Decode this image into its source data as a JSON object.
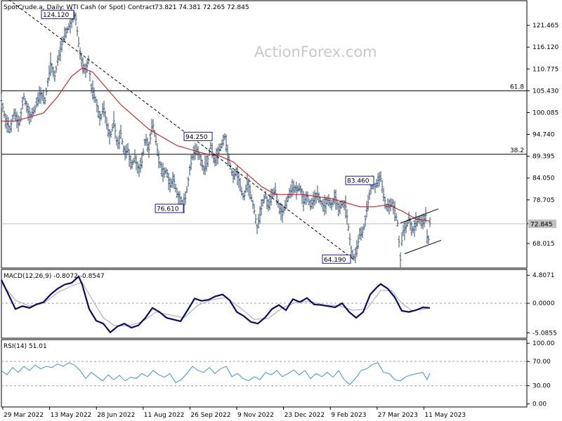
{
  "header": {
    "symbol": "SpotCrude.a, Daily:  WTI Cash (or Spot) Contract",
    "ohlc": "73.821 74.381 72.265 72.845"
  },
  "watermark": "ActionForex.com",
  "colors": {
    "price": "#2f4f6f",
    "ma": "#e00000",
    "macd": "#0a0a6e",
    "signal": "#a0a0d0",
    "rsi": "#3a96d8",
    "level": "#000000"
  },
  "chart_data": [
    {
      "type": "line",
      "title": "",
      "series": [],
      "ylim": [
        62.0,
        127.5
      ],
      "yticks": [
        "121.465",
        "116.120",
        "110.775",
        "105.430",
        "100.085",
        "94.740",
        "89.395",
        "84.050",
        "78.705",
        "72.845",
        "68.015"
      ],
      "current_price": "72.845",
      "levels": [
        {
          "label": "61.8",
          "value": 105.43
        },
        {
          "label": "38.2",
          "value": 89.88
        }
      ],
      "xticks": [
        "29 Mar 2022",
        "13 May 2022",
        "28 Jun 2022",
        "11 Aug 2022",
        "26 Sep 2022",
        "9 Nov 2022",
        "23 Dec 2022",
        "9 Feb 2023",
        "27 Mar 2023",
        "11 May 2023"
      ],
      "price_points": [
        [
          0,
          103
        ],
        [
          6,
          98
        ],
        [
          12,
          96
        ],
        [
          18,
          100
        ],
        [
          25,
          97
        ],
        [
          32,
          104
        ],
        [
          40,
          99
        ],
        [
          48,
          101
        ],
        [
          55,
          105
        ],
        [
          62,
          103
        ],
        [
          70,
          112
        ],
        [
          76,
          109
        ],
        [
          83,
          115
        ],
        [
          88,
          118
        ],
        [
          93,
          120
        ],
        [
          98,
          122
        ],
        [
          103,
          124.12
        ],
        [
          106,
          123
        ],
        [
          110,
          117
        ],
        [
          115,
          112
        ],
        [
          120,
          110
        ],
        [
          124,
          113
        ],
        [
          128,
          106
        ],
        [
          133,
          104
        ],
        [
          137,
          101
        ],
        [
          141,
          98
        ],
        [
          145,
          102
        ],
        [
          150,
          97
        ],
        [
          155,
          94
        ],
        [
          160,
          98
        ],
        [
          165,
          92
        ],
        [
          170,
          95
        ],
        [
          175,
          90
        ],
        [
          180,
          91
        ],
        [
          185,
          87
        ],
        [
          190,
          89
        ],
        [
          195,
          86
        ],
        [
          200,
          88
        ],
        [
          205,
          94
        ],
        [
          210,
          91
        ],
        [
          215,
          98
        ],
        [
          220,
          93
        ],
        [
          225,
          88
        ],
        [
          230,
          85
        ],
        [
          235,
          86
        ],
        [
          240,
          82
        ],
        [
          245,
          84
        ],
        [
          250,
          80
        ],
        [
          255,
          79
        ],
        [
          259,
          76.61
        ],
        [
          263,
          80
        ],
        [
          268,
          86
        ],
        [
          273,
          90
        ],
        [
          278,
          91
        ],
        [
          283,
          89
        ],
        [
          288,
          86
        ],
        [
          293,
          88
        ],
        [
          298,
          92
        ],
        [
          303,
          88
        ],
        [
          308,
          90
        ],
        [
          313,
          92
        ],
        [
          318,
          94.25
        ],
        [
          322,
          90
        ],
        [
          326,
          87
        ],
        [
          330,
          84
        ],
        [
          335,
          86
        ],
        [
          340,
          82
        ],
        [
          345,
          79
        ],
        [
          350,
          83
        ],
        [
          355,
          80
        ],
        [
          360,
          76
        ],
        [
          364,
          72
        ],
        [
          368,
          75
        ],
        [
          372,
          78
        ],
        [
          376,
          80
        ],
        [
          380,
          77
        ],
        [
          385,
          80
        ],
        [
          390,
          81
        ],
        [
          395,
          77
        ],
        [
          400,
          75
        ],
        [
          405,
          78
        ],
        [
          410,
          80
        ],
        [
          415,
          82
        ],
        [
          420,
          81
        ],
        [
          425,
          82
        ],
        [
          430,
          78
        ],
        [
          435,
          80
        ],
        [
          440,
          77
        ],
        [
          445,
          79
        ],
        [
          450,
          80
        ],
        [
          455,
          78
        ],
        [
          460,
          77
        ],
        [
          465,
          79
        ],
        [
          470,
          77
        ],
        [
          475,
          80
        ],
        [
          480,
          76
        ],
        [
          485,
          78
        ],
        [
          490,
          77
        ],
        [
          494,
          72
        ],
        [
          498,
          66
        ],
        [
          501,
          64.19
        ],
        [
          505,
          66
        ],
        [
          510,
          70
        ],
        [
          515,
          71
        ],
        [
          520,
          76
        ],
        [
          524,
          80
        ],
        [
          528,
          83
        ],
        [
          532,
          82
        ],
        [
          536,
          83.46
        ],
        [
          540,
          84
        ],
        [
          544,
          80
        ],
        [
          548,
          77
        ],
        [
          552,
          77
        ],
        [
          556,
          78
        ],
        [
          560,
          76
        ],
        [
          564,
          73
        ],
        [
          568,
          64
        ],
        [
          571,
          71
        ],
        [
          576,
          72
        ],
        [
          580,
          74
        ],
        [
          585,
          71
        ],
        [
          590,
          73
        ],
        [
          595,
          74
        ],
        [
          600,
          73
        ],
        [
          604,
          75
        ],
        [
          607,
          67
        ],
        [
          610,
          72.845
        ]
      ],
      "ma_points": [
        [
          0,
          98
        ],
        [
          20,
          98
        ],
        [
          40,
          99
        ],
        [
          60,
          100
        ],
        [
          80,
          104
        ],
        [
          100,
          109
        ],
        [
          115,
          111
        ],
        [
          130,
          110
        ],
        [
          150,
          106
        ],
        [
          170,
          102
        ],
        [
          190,
          99
        ],
        [
          210,
          96
        ],
        [
          230,
          94
        ],
        [
          250,
          92
        ],
        [
          270,
          91
        ],
        [
          290,
          90
        ],
        [
          310,
          89.5
        ],
        [
          330,
          88
        ],
        [
          350,
          85
        ],
        [
          370,
          82
        ],
        [
          390,
          80
        ],
        [
          410,
          80
        ],
        [
          430,
          80
        ],
        [
          450,
          79.5
        ],
        [
          470,
          79
        ],
        [
          490,
          78
        ],
        [
          510,
          77
        ],
        [
          530,
          77
        ],
        [
          550,
          77.5
        ],
        [
          570,
          76
        ],
        [
          590,
          74
        ],
        [
          610,
          73.5
        ]
      ],
      "annotations": [
        {
          "label": "124.120",
          "x": 103,
          "y": 124.12,
          "pos": "left"
        },
        {
          "label": "94.250",
          "x": 300,
          "y": 94.25,
          "pos": "left"
        },
        {
          "label": "76.610",
          "x": 259,
          "y": 76.61,
          "pos": "left"
        },
        {
          "label": "83.460",
          "x": 530,
          "y": 83.46,
          "pos": "left"
        },
        {
          "label": "64.190",
          "x": 497,
          "y": 64.19,
          "pos": "left"
        }
      ],
      "trendlines": [
        {
          "x1": 5,
          "y1": 128.5,
          "x2": 501,
          "y2": 64.19
        },
        {
          "x1": 568,
          "y1": 73.0,
          "x2": 622,
          "y2": 76.5
        },
        {
          "x1": 574,
          "y1": 65.5,
          "x2": 626,
          "y2": 68.8
        }
      ]
    },
    {
      "type": "line",
      "title": "MACD(12,26,9) -0.8072 -0.8547",
      "ylim": [
        -6.0,
        5.8
      ],
      "yticks": [
        "4.8071",
        "0.0000",
        "-5.0855"
      ],
      "series": [],
      "macd_points": [
        [
          0,
          4
        ],
        [
          10,
          1.5
        ],
        [
          20,
          -1
        ],
        [
          30,
          -0.5
        ],
        [
          40,
          -0.8
        ],
        [
          50,
          -0.2
        ],
        [
          60,
          0.2
        ],
        [
          70,
          1.5
        ],
        [
          80,
          2.5
        ],
        [
          90,
          3.2
        ],
        [
          100,
          3.5
        ],
        [
          110,
          4.6
        ],
        [
          115,
          3.2
        ],
        [
          125,
          -1
        ],
        [
          135,
          -3
        ],
        [
          145,
          -3.5
        ],
        [
          155,
          -5
        ],
        [
          165,
          -4
        ],
        [
          175,
          -3.5
        ],
        [
          185,
          -4.2
        ],
        [
          195,
          -3.8
        ],
        [
          205,
          -2.5
        ],
        [
          215,
          -0.8
        ],
        [
          225,
          -1.5
        ],
        [
          235,
          -2.5
        ],
        [
          245,
          -2.8
        ],
        [
          255,
          -3.1
        ],
        [
          265,
          -1.2
        ],
        [
          275,
          0.8
        ],
        [
          285,
          0.4
        ],
        [
          295,
          0.6
        ],
        [
          305,
          1.2
        ],
        [
          315,
          1.5
        ],
        [
          325,
          0.5
        ],
        [
          335,
          -1.5
        ],
        [
          345,
          -2.2
        ],
        [
          355,
          -3.2
        ],
        [
          365,
          -3.5
        ],
        [
          375,
          -2.5
        ],
        [
          385,
          -1
        ],
        [
          395,
          -0.3
        ],
        [
          405,
          -1.2
        ],
        [
          415,
          0.7
        ],
        [
          425,
          0.2
        ],
        [
          435,
          0.9
        ],
        [
          445,
          -0.2
        ],
        [
          455,
          -0.3
        ],
        [
          465,
          -0.5
        ],
        [
          475,
          -0.7
        ],
        [
          485,
          0
        ],
        [
          495,
          -1.5
        ],
        [
          505,
          -2.5
        ],
        [
          515,
          -1.5
        ],
        [
          525,
          1.5
        ],
        [
          535,
          2.8
        ],
        [
          540,
          3.3
        ],
        [
          550,
          2.5
        ],
        [
          560,
          1
        ],
        [
          570,
          -1.3
        ],
        [
          580,
          -1.5
        ],
        [
          590,
          -1.2
        ],
        [
          600,
          -0.7
        ],
        [
          610,
          -0.8
        ]
      ],
      "signal_points": [
        [
          0,
          3.5
        ],
        [
          20,
          0.5
        ],
        [
          40,
          -0.5
        ],
        [
          60,
          0
        ],
        [
          80,
          1.8
        ],
        [
          100,
          3
        ],
        [
          115,
          3.6
        ],
        [
          130,
          0.5
        ],
        [
          145,
          -2.5
        ],
        [
          160,
          -3.8
        ],
        [
          180,
          -3.9
        ],
        [
          200,
          -3.2
        ],
        [
          220,
          -1.5
        ],
        [
          240,
          -2
        ],
        [
          260,
          -2.5
        ],
        [
          280,
          -0.3
        ],
        [
          300,
          0.6
        ],
        [
          320,
          1
        ],
        [
          340,
          -0.8
        ],
        [
          360,
          -2.8
        ],
        [
          380,
          -2.6
        ],
        [
          400,
          -0.8
        ],
        [
          420,
          0.2
        ],
        [
          440,
          0.3
        ],
        [
          460,
          -0.3
        ],
        [
          480,
          -0.4
        ],
        [
          500,
          -1.2
        ],
        [
          520,
          -1
        ],
        [
          540,
          2.2
        ],
        [
          555,
          2.2
        ],
        [
          570,
          0
        ],
        [
          585,
          -1.3
        ],
        [
          600,
          -1
        ],
        [
          610,
          -0.85
        ]
      ]
    },
    {
      "type": "line",
      "title": "RSI(14) 51.01",
      "ylim": [
        -5,
        106
      ],
      "yticks": [
        "100.00",
        "70.00",
        "30.00",
        "0.00"
      ],
      "levels": [
        {
          "value": 70
        },
        {
          "value": 30
        }
      ],
      "series": [],
      "rsi_points": [
        [
          0,
          55
        ],
        [
          8,
          48
        ],
        [
          16,
          60
        ],
        [
          24,
          52
        ],
        [
          32,
          62
        ],
        [
          40,
          55
        ],
        [
          48,
          64
        ],
        [
          56,
          58
        ],
        [
          64,
          62
        ],
        [
          72,
          60
        ],
        [
          80,
          66
        ],
        [
          88,
          62
        ],
        [
          96,
          68
        ],
        [
          104,
          64
        ],
        [
          112,
          55
        ],
        [
          120,
          42
        ],
        [
          128,
          52
        ],
        [
          136,
          45
        ],
        [
          144,
          38
        ],
        [
          152,
          48
        ],
        [
          160,
          40
        ],
        [
          168,
          47
        ],
        [
          176,
          38
        ],
        [
          184,
          44
        ],
        [
          192,
          42
        ],
        [
          200,
          50
        ],
        [
          208,
          45
        ],
        [
          216,
          55
        ],
        [
          224,
          48
        ],
        [
          232,
          44
        ],
        [
          240,
          50
        ],
        [
          248,
          35
        ],
        [
          256,
          40
        ],
        [
          264,
          50
        ],
        [
          272,
          62
        ],
        [
          280,
          55
        ],
        [
          288,
          52
        ],
        [
          296,
          60
        ],
        [
          304,
          50
        ],
        [
          312,
          58
        ],
        [
          320,
          62
        ],
        [
          328,
          45
        ],
        [
          336,
          50
        ],
        [
          344,
          42
        ],
        [
          352,
          38
        ],
        [
          360,
          45
        ],
        [
          368,
          40
        ],
        [
          376,
          52
        ],
        [
          384,
          48
        ],
        [
          392,
          55
        ],
        [
          400,
          45
        ],
        [
          408,
          50
        ],
        [
          416,
          56
        ],
        [
          424,
          48
        ],
        [
          432,
          55
        ],
        [
          440,
          42
        ],
        [
          448,
          50
        ],
        [
          456,
          45
        ],
        [
          464,
          52
        ],
        [
          472,
          44
        ],
        [
          480,
          55
        ],
        [
          488,
          40
        ],
        [
          496,
          32
        ],
        [
          504,
          42
        ],
        [
          512,
          55
        ],
        [
          520,
          58
        ],
        [
          528,
          65
        ],
        [
          536,
          68
        ],
        [
          544,
          52
        ],
        [
          552,
          50
        ],
        [
          560,
          40
        ],
        [
          568,
          38
        ],
        [
          576,
          45
        ],
        [
          584,
          48
        ],
        [
          592,
          50
        ],
        [
          600,
          52
        ],
        [
          606,
          40
        ],
        [
          610,
          51
        ]
      ]
    }
  ]
}
